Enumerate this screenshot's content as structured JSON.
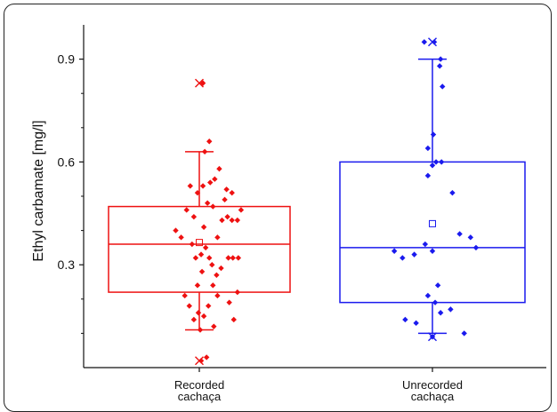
{
  "chart_data": {
    "type": "box",
    "ylabel": "Ethyl carbamate [mg/l]",
    "xlabel": "",
    "ylim": [
      0.0,
      1.0
    ],
    "yticks": [
      0.3,
      0.6,
      0.9
    ],
    "ytick_labels": [
      "0.3",
      "0.6",
      "0.9"
    ],
    "grid": false,
    "categories": [
      [
        "Recorded",
        "cachaça"
      ],
      [
        "Unrecorded",
        "cachaça"
      ]
    ],
    "series": [
      {
        "color": "#ee1111",
        "box": {
          "q1": 0.22,
          "median": 0.36,
          "q3": 0.47,
          "whisker_low": 0.11,
          "whisker_high": 0.63,
          "mean": 0.365,
          "min": 0.02,
          "max": 0.83
        },
        "points": [
          [
            -0.26,
            0.4
          ],
          [
            -0.2,
            0.38
          ],
          [
            -0.14,
            0.46
          ],
          [
            -0.1,
            0.53
          ],
          [
            -0.06,
            0.44
          ],
          [
            -0.02,
            0.51
          ],
          [
            0.04,
            0.53
          ],
          [
            0.09,
            0.48
          ],
          [
            0.12,
            0.54
          ],
          [
            0.15,
            0.47
          ],
          [
            0.05,
            0.41
          ],
          [
            -0.08,
            0.36
          ],
          [
            -0.04,
            0.32
          ],
          [
            0.02,
            0.33
          ],
          [
            0.07,
            0.35
          ],
          [
            0.11,
            0.32
          ],
          [
            0.14,
            0.3
          ],
          [
            0.2,
            0.38
          ],
          [
            0.25,
            0.43
          ],
          [
            0.31,
            0.44
          ],
          [
            0.36,
            0.43
          ],
          [
            0.42,
            0.43
          ],
          [
            0.46,
            0.46
          ],
          [
            0.3,
            0.52
          ],
          [
            0.36,
            0.51
          ],
          [
            0.22,
            0.58
          ],
          [
            0.17,
            0.55
          ],
          [
            0.06,
            0.63
          ],
          [
            0.11,
            0.66
          ],
          [
            0.28,
            0.49
          ],
          [
            -0.16,
            0.21
          ],
          [
            -0.11,
            0.18
          ],
          [
            -0.06,
            0.14
          ],
          [
            -0.01,
            0.16
          ],
          [
            0.05,
            0.15
          ],
          [
            0.1,
            0.18
          ],
          [
            0.15,
            0.24
          ],
          [
            0.2,
            0.21
          ],
          [
            0.33,
            0.19
          ],
          [
            0.38,
            0.14
          ],
          [
            0.42,
            0.22
          ],
          [
            0.32,
            0.32
          ],
          [
            0.37,
            0.32
          ],
          [
            0.43,
            0.32
          ],
          [
            0.19,
            0.27
          ],
          [
            0.24,
            0.29
          ],
          [
            0.03,
            0.28
          ],
          [
            -0.02,
            0.24
          ],
          [
            0.16,
            0.12
          ],
          [
            0.01,
            0.11
          ],
          [
            0.08,
            0.03
          ],
          [
            0.02,
            0.02
          ],
          [
            0.04,
            0.83
          ]
        ],
        "markers": {
          "max_x": 0.83,
          "min_x": 0.02
        }
      },
      {
        "color": "#1a1aee",
        "box": {
          "q1": 0.19,
          "median": 0.35,
          "q3": 0.6,
          "whisker_low": 0.1,
          "whisker_high": 0.9,
          "mean": 0.42,
          "min": 0.09,
          "max": 0.95
        },
        "points": [
          [
            -0.09,
            0.95
          ],
          [
            0.02,
            0.95
          ],
          [
            0.09,
            0.9
          ],
          [
            0.08,
            0.88
          ],
          [
            0.11,
            0.82
          ],
          [
            0.01,
            0.68
          ],
          [
            -0.05,
            0.64
          ],
          [
            0.04,
            0.6
          ],
          [
            0.1,
            0.6
          ],
          [
            0.22,
            0.51
          ],
          [
            -0.05,
            0.56
          ],
          [
            0.0,
            0.59
          ],
          [
            0.3,
            0.39
          ],
          [
            0.42,
            0.38
          ],
          [
            0.48,
            0.35
          ],
          [
            -0.42,
            0.34
          ],
          [
            -0.33,
            0.32
          ],
          [
            -0.2,
            0.33
          ],
          [
            -0.08,
            0.36
          ],
          [
            0.0,
            0.34
          ],
          [
            0.06,
            0.24
          ],
          [
            -0.05,
            0.21
          ],
          [
            0.03,
            0.19
          ],
          [
            0.09,
            0.16
          ],
          [
            0.2,
            0.17
          ],
          [
            -0.3,
            0.14
          ],
          [
            -0.18,
            0.13
          ],
          [
            0.0,
            0.09
          ],
          [
            0.35,
            0.1
          ]
        ],
        "markers": {
          "max_x": 0.95,
          "min_x": 0.09
        }
      }
    ]
  }
}
